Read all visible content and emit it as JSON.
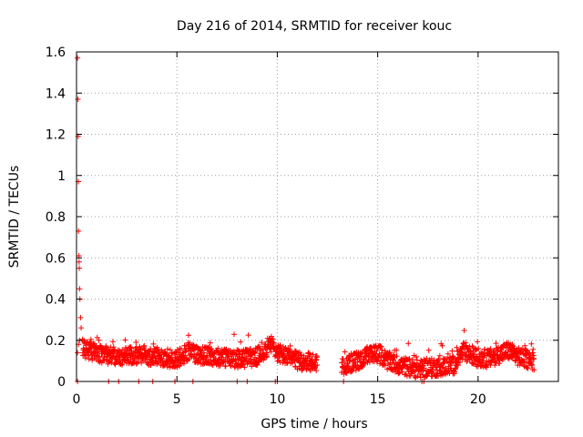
{
  "chart_data": {
    "type": "scatter",
    "title": "Day 216 of 2014, SRMTID for receiver kouc",
    "xlabel": "GPS time / hours",
    "ylabel": "SRMTID / TECUs",
    "xlim": [
      0,
      24
    ],
    "ylim": [
      0,
      1.6
    ],
    "xticks": [
      0,
      5,
      10,
      15,
      20
    ],
    "yticks": [
      0,
      0.2,
      0.4,
      0.6,
      0.8,
      1,
      1.2,
      1.4,
      1.6
    ],
    "xtick_labels": [
      "0",
      "5",
      "10",
      "15",
      "20"
    ],
    "ytick_labels": [
      "0",
      "0.2",
      "0.4",
      "0.6",
      "0.8",
      "1",
      "1.2",
      "1.4",
      "1.6"
    ],
    "grid": true,
    "marker": "+",
    "series": [
      {
        "name": "SRMTID",
        "color": "#ff0000",
        "points_early": [
          [
            0.05,
            1.57
          ],
          [
            0.07,
            1.37
          ],
          [
            0.08,
            1.19
          ],
          [
            0.09,
            0.97
          ],
          [
            0.1,
            0.73
          ],
          [
            0.12,
            0.61
          ],
          [
            0.13,
            0.58
          ],
          [
            0.14,
            0.55
          ],
          [
            0.15,
            0.45
          ],
          [
            0.17,
            0.4
          ],
          [
            0.2,
            0.31
          ],
          [
            0.23,
            0.26
          ],
          [
            0.05,
            0.14
          ],
          [
            0.1,
            0.18
          ],
          [
            0.15,
            0.2
          ]
        ],
        "envelope": [
          [
            0.3,
            0.16
          ],
          [
            1,
            0.14
          ],
          [
            2,
            0.12
          ],
          [
            3,
            0.13
          ],
          [
            4,
            0.12
          ],
          [
            5,
            0.11
          ],
          [
            5.7,
            0.15
          ],
          [
            6,
            0.13
          ],
          [
            7,
            0.12
          ],
          [
            8,
            0.11
          ],
          [
            9,
            0.12
          ],
          [
            9.7,
            0.18
          ],
          [
            10,
            0.14
          ],
          [
            11,
            0.1
          ],
          [
            12,
            0.09
          ],
          [
            13.3,
            0.08
          ],
          [
            14,
            0.1
          ],
          [
            14.7,
            0.13
          ],
          [
            15,
            0.14
          ],
          [
            15.5,
            0.1
          ],
          [
            16,
            0.08
          ],
          [
            17,
            0.06
          ],
          [
            18,
            0.07
          ],
          [
            18.8,
            0.08
          ],
          [
            19.3,
            0.15
          ],
          [
            19.8,
            0.12
          ],
          [
            20.5,
            0.11
          ],
          [
            21.5,
            0.15
          ],
          [
            22,
            0.12
          ],
          [
            22.8,
            0.1
          ]
        ],
        "gaps": [
          [
            12,
            13.2
          ]
        ],
        "zeros": [
          0.05,
          1.6,
          2.1,
          3.1,
          3.8,
          4.9,
          5.8,
          8.0,
          8.5,
          9.9,
          10.0,
          13.3,
          17.2,
          17.3
        ]
      }
    ]
  }
}
